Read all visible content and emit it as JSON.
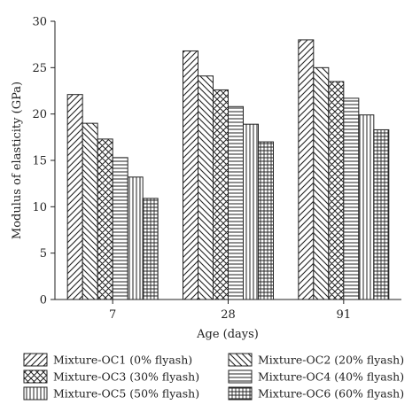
{
  "chart_data": {
    "type": "bar",
    "categories": [
      "7",
      "28",
      "91"
    ],
    "xlabel": "Age (days)",
    "ylabel": "Modulus of elasticity (GPa)",
    "ylim": [
      0,
      30
    ],
    "yticks": [
      "0",
      "5",
      "10",
      "15",
      "20",
      "25",
      "30"
    ],
    "grid": false,
    "legend_position": "bottom",
    "series": [
      {
        "name": "Mixture-OC1 (0% flyash)",
        "pattern": "diagonal-forward",
        "values": [
          22.1,
          26.8,
          28.0
        ]
      },
      {
        "name": "Mixture-OC2 (20% flyash)",
        "pattern": "diagonal-backward",
        "values": [
          19.0,
          24.1,
          25.0
        ]
      },
      {
        "name": "Mixture-OC3 (30% flyash)",
        "pattern": "crosshatch-diagonal",
        "values": [
          17.3,
          22.6,
          23.5
        ]
      },
      {
        "name": "Mixture-OC4 (40% flyash)",
        "pattern": "horizontal",
        "values": [
          15.3,
          20.8,
          21.7
        ]
      },
      {
        "name": "Mixture-OC5 (50% flyash)",
        "pattern": "vertical",
        "values": [
          13.2,
          18.9,
          19.9
        ]
      },
      {
        "name": "Mixture-OC6 (60% flyash)",
        "pattern": "grid",
        "values": [
          10.9,
          17.0,
          18.3
        ]
      }
    ],
    "colors": {
      "stroke": "#222222",
      "fill": "#ffffff"
    }
  }
}
